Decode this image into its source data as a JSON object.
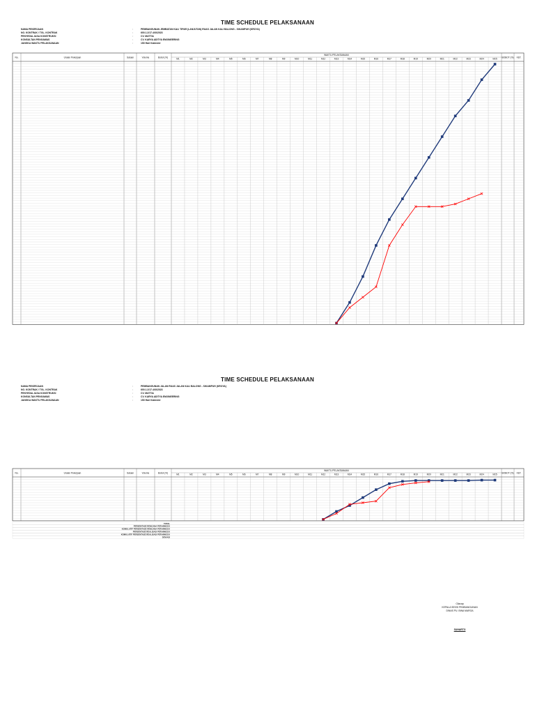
{
  "sheets": [
    {
      "title": "TIME SCHEDULE PELAKSANAAN",
      "meta": [
        {
          "k": "NAMA PEKERJAAN",
          "v": "PEMBANGUNAN JEMBATAN KALI TIPAR (LANJUTAN) RUAS JALAN KALI BALONG - SIKAMPUH (KROYA)"
        },
        {
          "k": "NO. KONTRAK / TGL. KONTRAK",
          "v": "600.1.2/17.4/XI/2023"
        },
        {
          "k": "PENYEDIA JASA KONSTRUKSI",
          "v": "CV. MATTIA"
        },
        {
          "k": "KONSULTAN PENGAWAS",
          "v": "CV. KARYA ADITYA ENGINEERING"
        },
        {
          "k": "JANGKA WAKTU PELAKSANAAN",
          "v": "150 Hari Kalender"
        }
      ]
    },
    {
      "title": "TIME SCHEDULE PELAKSANAAN",
      "meta": [
        {
          "k": "NAMA PEKERJAAN",
          "v": "PEMBANGUNAN JALAN RUAS JALAN KALI BALONG - SIKAMPUH (KROYA)"
        },
        {
          "k": "NO. KONTRAK / TGL. KONTRAK",
          "v": "600.1.2/17.4/XI/2023"
        },
        {
          "k": "PENYEDIA JASA KONSTRUKSI",
          "v": "CV. MATTIA"
        },
        {
          "k": "KONSULTAN PENGAWAS",
          "v": "CV. KARYA ADITYA ENGINEERING"
        },
        {
          "k": "JANGKA WAKTU PELAKSANAAN",
          "v": "150 Hari Kalender"
        }
      ]
    }
  ],
  "table_headers": {
    "no": "No.",
    "uraian": "Uraian Pekerjaan",
    "satuan": "Satuan",
    "volume": "Volume",
    "bobot": "Bobot (%)",
    "waktu": "WAKTU PELAKSANAAN",
    "bobot_total": "BOBOT (%)",
    "ket": "KET."
  },
  "weeks": [
    "M1",
    "M2",
    "M3",
    "M4",
    "M5",
    "M6",
    "M7",
    "M8",
    "M9",
    "M10",
    "M11",
    "M12",
    "M13",
    "M14",
    "M15",
    "M16",
    "M17",
    "M18",
    "M19",
    "M20",
    "M21",
    "M22",
    "M23",
    "M24",
    "M25"
  ],
  "bottom_summary_labels": [
    "TOTAL",
    "PERSENTASE RENCANA PER MINGGU",
    "KOMULATIF PERSENTASE RENCANA PER MINGGU",
    "PERSENTASE REALISASI PER MINGGU",
    "KOMULATIF PERSENTASE REALISASI PER MINGGU",
    "DEVIASI"
  ],
  "signature": {
    "place": "Cilacap",
    "role": "KEPALA SEKSI PEMBANGUNAN",
    "unit": "DINAS PU. BINA MARGA",
    "name": "SUHARTO"
  },
  "colors": {
    "plan": "#1f3a7a",
    "real": "#ff0000",
    "grid": "#999999"
  },
  "chart_data": [
    {
      "type": "line",
      "title": "",
      "x": [
        "M1",
        "M2",
        "M3",
        "M4",
        "M5",
        "M6",
        "M7",
        "M8",
        "M9",
        "M10",
        "M11",
        "M12",
        "M13",
        "M14",
        "M15",
        "M16",
        "M17",
        "M18",
        "M19",
        "M20",
        "M21",
        "M22",
        "M23",
        "M24",
        "M25"
      ],
      "ylim": [
        0,
        100
      ],
      "series": [
        {
          "values": [
            null,
            null,
            null,
            null,
            null,
            null,
            null,
            null,
            null,
            null,
            null,
            null,
            0,
            8,
            18,
            30,
            40,
            48,
            56,
            64,
            72,
            80,
            86,
            94,
            100
          ]
        },
        {
          "values": [
            null,
            null,
            null,
            null,
            null,
            null,
            null,
            null,
            null,
            null,
            null,
            null,
            0,
            6,
            10,
            14,
            30,
            38,
            45,
            45,
            45,
            46,
            48,
            50,
            null
          ]
        }
      ]
    },
    {
      "type": "line",
      "title": "",
      "x": [
        "M1",
        "M2",
        "M3",
        "M4",
        "M5",
        "M6",
        "M7",
        "M8",
        "M9",
        "M10",
        "M11",
        "M12",
        "M13",
        "M14",
        "M15",
        "M16",
        "M17",
        "M18",
        "M19",
        "M20",
        "M21",
        "M22",
        "M23",
        "M24",
        "M25"
      ],
      "ylim": [
        0,
        100
      ],
      "series": [
        {
          "values": [
            null,
            null,
            null,
            null,
            null,
            null,
            null,
            null,
            null,
            null,
            null,
            0,
            20,
            35,
            55,
            75,
            90,
            96,
            98,
            98,
            98,
            98,
            98,
            99,
            99
          ]
        },
        {
          "values": [
            null,
            null,
            null,
            null,
            null,
            null,
            null,
            null,
            null,
            null,
            null,
            0,
            15,
            38,
            42,
            46,
            80,
            88,
            92,
            95,
            null,
            null,
            null,
            null,
            null
          ]
        }
      ]
    }
  ]
}
